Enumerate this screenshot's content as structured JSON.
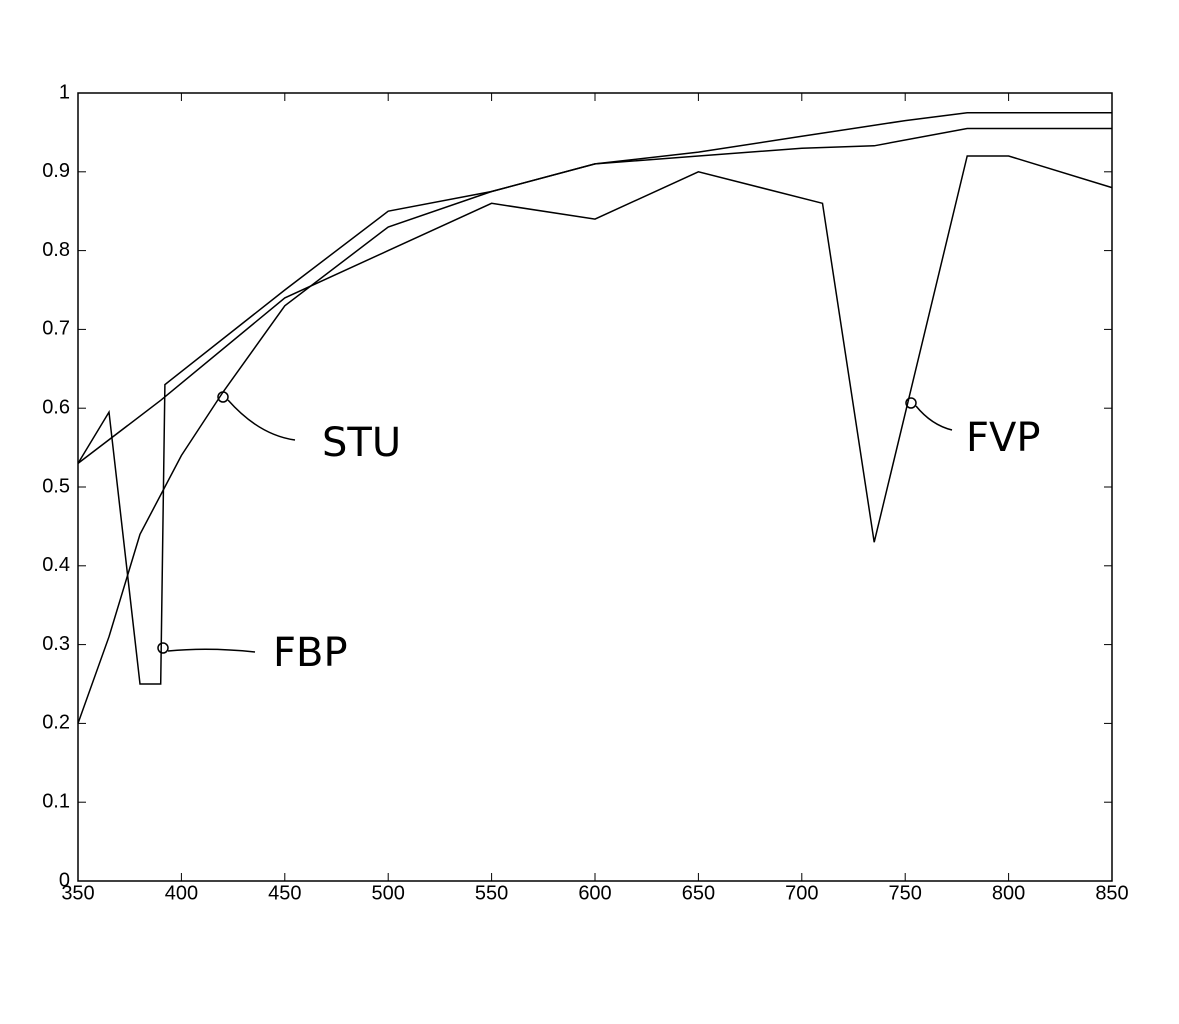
{
  "chart_data": {
    "type": "line",
    "xlim": [
      350,
      850
    ],
    "xticks": [
      350,
      400,
      450,
      500,
      550,
      600,
      650,
      700,
      750,
      800,
      850
    ],
    "ylim": [
      0,
      1
    ],
    "yticks": [
      0,
      0.1,
      0.2,
      0.3,
      0.4,
      0.5,
      0.6,
      0.7,
      0.8,
      0.9,
      1
    ],
    "series": [
      {
        "name": "STU",
        "color": "#000000",
        "x": [
          350,
          365,
          380,
          400,
          420,
          450,
          500,
          550,
          600,
          650,
          700,
          750,
          780,
          850
        ],
        "values": [
          0.2,
          0.31,
          0.44,
          0.54,
          0.62,
          0.73,
          0.83,
          0.875,
          0.91,
          0.925,
          0.945,
          0.965,
          0.975,
          0.975
        ]
      },
      {
        "name": "FVP",
        "color": "#000000",
        "x": [
          350,
          390,
          450,
          500,
          550,
          600,
          650,
          710,
          735,
          780,
          800,
          850
        ],
        "values": [
          0.53,
          0.61,
          0.74,
          0.8,
          0.86,
          0.84,
          0.9,
          0.86,
          0.43,
          0.92,
          0.92,
          0.88
        ]
      },
      {
        "name": "FBP",
        "color": "#000000",
        "x": [
          350,
          365,
          380,
          390,
          392,
          450,
          500,
          550,
          600,
          650,
          700,
          735,
          780,
          850
        ],
        "values": [
          0.53,
          0.595,
          0.25,
          0.25,
          0.63,
          0.75,
          0.85,
          0.875,
          0.91,
          0.92,
          0.93,
          0.933,
          0.955,
          0.955
        ]
      }
    ]
  }
}
